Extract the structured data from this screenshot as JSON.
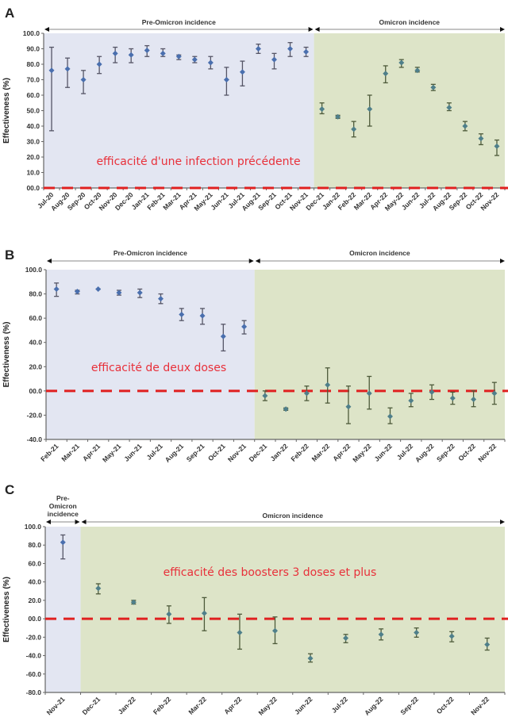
{
  "chart_data": [
    {
      "panel": "A",
      "type": "scatter",
      "title": "",
      "ylabel": "Effectiveness (%)",
      "xlabel": "",
      "ylim": [
        0,
        100
      ],
      "yticks": [
        0,
        10,
        20,
        30,
        40,
        50,
        60,
        70,
        80,
        90,
        100
      ],
      "ytick_labels": [
        "00.0",
        "10.0",
        "20.0",
        "30.0",
        "40.0",
        "50.0",
        "60.0",
        "70.0",
        "80.0",
        "90.0",
        "100.0"
      ],
      "categories": [
        "Jul-20",
        "Aug-20",
        "Sep-20",
        "Oct-20",
        "Nov-20",
        "Dec-20",
        "Jan-21",
        "Feb-21",
        "Mar-21",
        "Apr-21",
        "May-21",
        "Jun-21",
        "Jul-21",
        "Aug-21",
        "Sep-21",
        "Oct-21",
        "Nov-21",
        "Dec-21",
        "Jan-22",
        "Feb-22",
        "Mar-22",
        "Apr-22",
        "May-22",
        "Jun-22",
        "Jul-22",
        "Aug-22",
        "Sep-22",
        "Oct-22",
        "Nov-22"
      ],
      "values": [
        76,
        77,
        70,
        80,
        87,
        86,
        89,
        87,
        85,
        83,
        81,
        70,
        75,
        90,
        83,
        90,
        88,
        51,
        46,
        38,
        51,
        74,
        81,
        76,
        65,
        52,
        40,
        32,
        27
      ],
      "lower": [
        37,
        65,
        61,
        74,
        81,
        81,
        85,
        85,
        83,
        81,
        77,
        60,
        66,
        87,
        77,
        85,
        85,
        48,
        45,
        33,
        40,
        68,
        78,
        75,
        63,
        50,
        37,
        28,
        21
      ],
      "upper": [
        91,
        84,
        76,
        85,
        91,
        90,
        92,
        90,
        86,
        85,
        85,
        78,
        82,
        93,
        87,
        94,
        91,
        55,
        47,
        43,
        60,
        79,
        83,
        78,
        67,
        55,
        43,
        35,
        31
      ],
      "periods": [
        {
          "label": "Pre-Omicron incidence",
          "start": "Jul-20",
          "end": "Nov-21",
          "color": "#e3e6f2"
        },
        {
          "label": "Omicron incidence",
          "start": "Dec-21",
          "end": "Nov-22",
          "color": "#dde4c8"
        }
      ],
      "reference_line": {
        "y": 0,
        "style": "dashed",
        "color": "#e02020"
      },
      "annotation": "efficacité d'une  infection précédente",
      "grid": false
    },
    {
      "panel": "B",
      "type": "scatter",
      "title": "",
      "ylabel": "Effectiveness (%)",
      "xlabel": "",
      "ylim": [
        -40,
        100
      ],
      "yticks": [
        -40,
        -20,
        0,
        20,
        40,
        60,
        80,
        100
      ],
      "ytick_labels": [
        "-40.0",
        "-20.0",
        "00.0",
        "20.0",
        "40.0",
        "60.0",
        "80.0",
        "100.0"
      ],
      "categories": [
        "Feb-21",
        "Mar-21",
        "Apr-21",
        "May-21",
        "Jun-21",
        "Jul-21",
        "Aug-21",
        "Sep-21",
        "Oct-21",
        "Nov-21",
        "Dec-21",
        "Jan-22",
        "Feb-22",
        "Mar-22",
        "Apr-22",
        "May-22",
        "Jun-22",
        "Jul-22",
        "Aug-22",
        "Sep-22",
        "Oct-22",
        "Nov-22"
      ],
      "values": [
        84,
        82,
        84,
        81,
        81,
        76,
        63,
        62,
        45,
        53,
        -4,
        -15,
        -2,
        5,
        -13,
        -2,
        -21,
        -8,
        -1,
        -6,
        -7,
        -2
      ],
      "lower": [
        78,
        80,
        84,
        79,
        77,
        72,
        58,
        55,
        33,
        47,
        -8,
        -16,
        -8,
        -10,
        -27,
        -15,
        -27,
        -13,
        -7,
        -11,
        -13,
        -11
      ],
      "upper": [
        89,
        83,
        84,
        83,
        84,
        80,
        68,
        68,
        55,
        58,
        0,
        -14,
        4,
        19,
        4,
        12,
        -14,
        -2,
        5,
        -1,
        0,
        7
      ],
      "periods": [
        {
          "label": "Pre-Omicron incidence",
          "start": "Feb-21",
          "end": "Nov-21",
          "color": "#e3e6f2"
        },
        {
          "label": "Omicron incidence",
          "start": "Dec-21",
          "end": "Nov-22",
          "color": "#dde4c8"
        }
      ],
      "reference_line": {
        "y": 0,
        "style": "dashed",
        "color": "#e02020"
      },
      "annotation": "efficacité  de deux doses",
      "grid": false
    },
    {
      "panel": "C",
      "type": "scatter",
      "title": "",
      "ylabel": "Effectiveness (%)",
      "xlabel": "",
      "ylim": [
        -80,
        100
      ],
      "yticks": [
        -80,
        -60,
        -40,
        -20,
        0,
        20,
        40,
        60,
        80,
        100
      ],
      "ytick_labels": [
        "-80.0",
        "-60.0",
        "-40.0",
        "-20.0",
        "00.0",
        "20.0",
        "40.0",
        "60.0",
        "80.0",
        "100.0"
      ],
      "categories": [
        "Nov-21",
        "Dec-21",
        "Jan-22",
        "Feb-22",
        "Mar-22",
        "Apr-22",
        "May-22",
        "Jun-22",
        "Jul-22",
        "Aug-22",
        "Sep-22",
        "Oct-22",
        "Nov-22"
      ],
      "values": [
        83,
        33,
        18,
        5,
        6,
        -15,
        -13,
        -43,
        -21,
        -17,
        -15,
        -19,
        -28
      ],
      "lower": [
        65,
        27,
        16,
        -5,
        -13,
        -33,
        -27,
        -47,
        -26,
        -23,
        -20,
        -25,
        -34
      ],
      "upper": [
        91,
        38,
        20,
        14,
        23,
        5,
        2,
        -38,
        -17,
        -11,
        -10,
        -14,
        -21
      ],
      "periods": [
        {
          "label": "Pre- Omicron incidence",
          "start": "Nov-21",
          "end": "Nov-21",
          "color": "#e3e6f2"
        },
        {
          "label": "Omicron incidence",
          "start": "Dec-21",
          "end": "Nov-22",
          "color": "#dde4c8"
        }
      ],
      "reference_line": {
        "y": 0,
        "style": "dashed",
        "color": "#e02020"
      },
      "annotation": "efficacité des boosters  3 doses et plus",
      "grid": false
    }
  ],
  "colors": {
    "pre_marker": "#4a6fae",
    "omicron_marker": "#4f7f8a",
    "pre_errorbar": "#555566",
    "omicron_errorbar": "#4d5a3a",
    "reference_line": "#e02020",
    "annotation": "#e8303a"
  }
}
